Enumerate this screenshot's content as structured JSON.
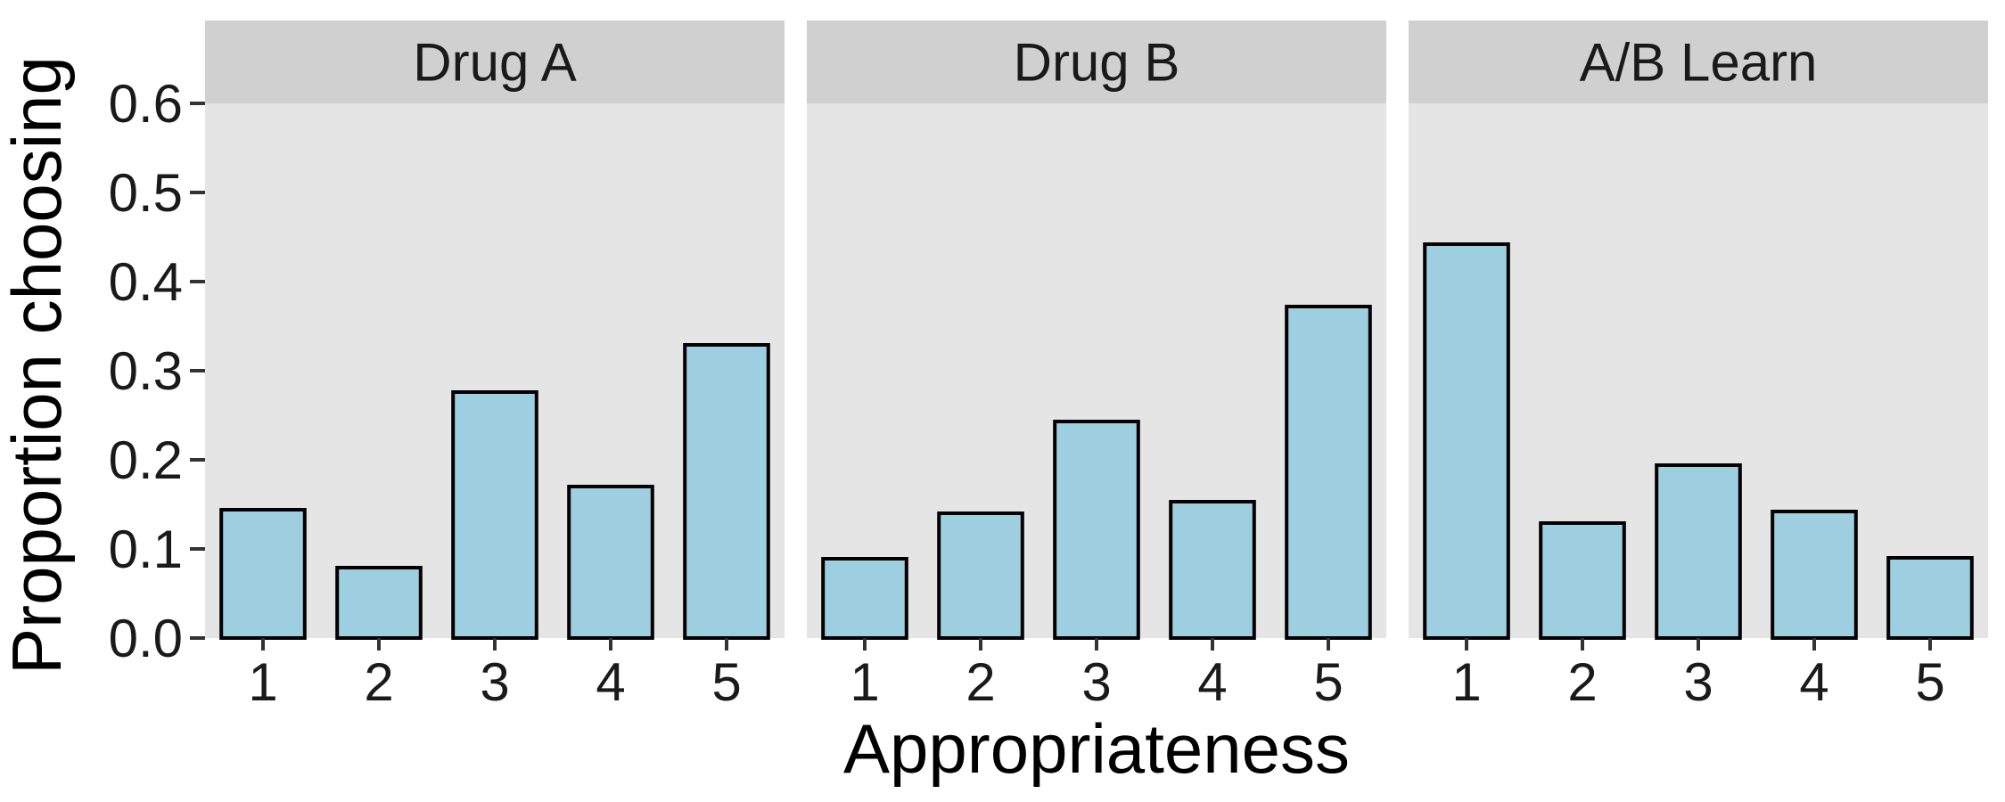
{
  "chart_data": {
    "type": "bar",
    "xlabel": "Appropriateness",
    "ylabel": "Proportion choosing",
    "ylim": [
      0,
      0.6
    ],
    "yticks": [
      "0.0",
      "0.1",
      "0.2",
      "0.3",
      "0.4",
      "0.5",
      "0.6"
    ],
    "categories": [
      "1",
      "2",
      "3",
      "4",
      "5"
    ],
    "colors": {
      "bar_fill": "#9ECFE0",
      "bar_stroke": "#000000",
      "panel_bg": "#E5E5E5",
      "strip_bg": "#D0D0D0"
    },
    "grid": false,
    "panels": [
      {
        "name": "Drug A",
        "values": [
          0.144,
          0.079,
          0.276,
          0.17,
          0.329
        ]
      },
      {
        "name": "Drug B",
        "values": [
          0.089,
          0.14,
          0.243,
          0.153,
          0.372
        ]
      },
      {
        "name": "A/B Learn",
        "values": [
          0.442,
          0.129,
          0.194,
          0.142,
          0.09
        ]
      }
    ]
  }
}
